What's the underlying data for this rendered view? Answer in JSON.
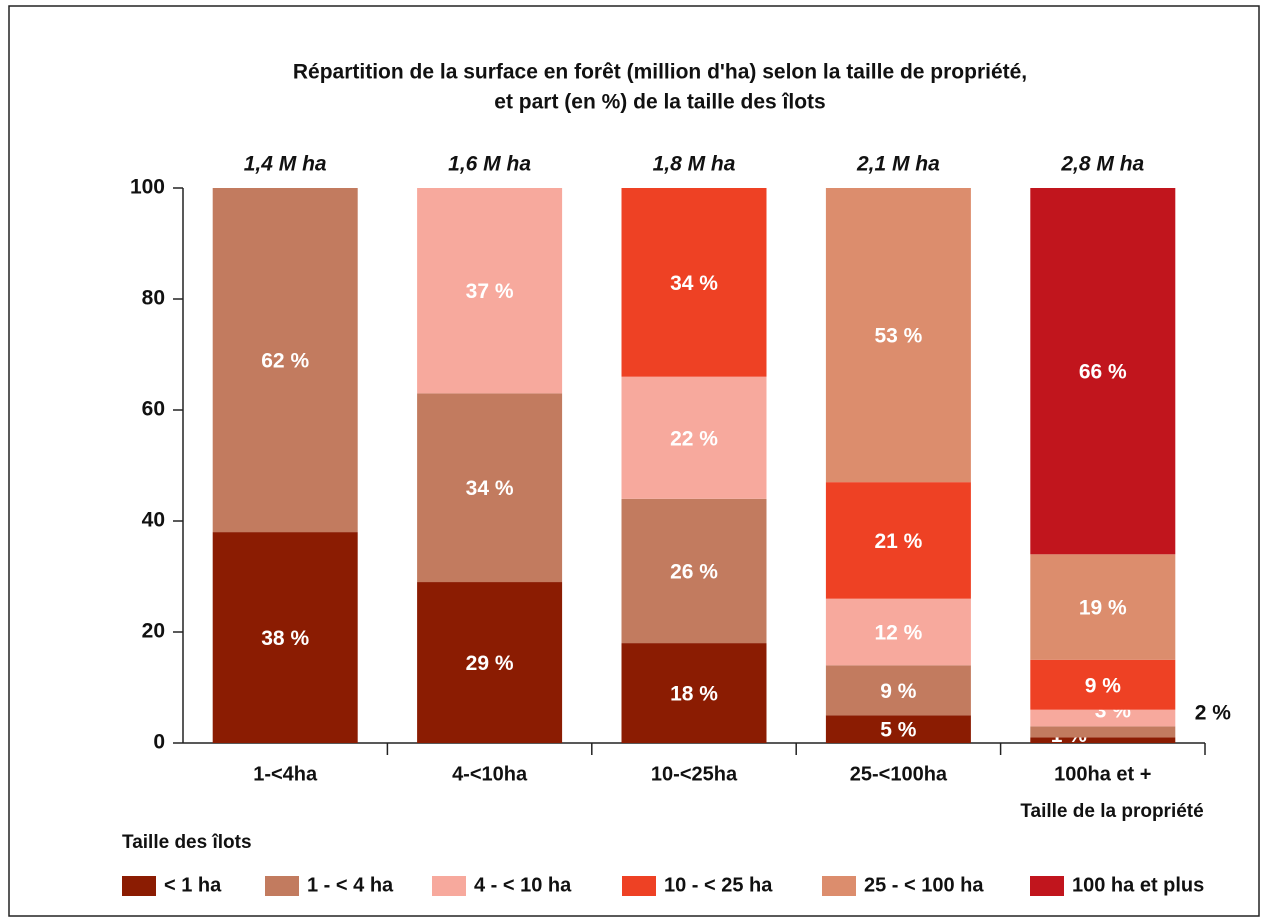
{
  "chart_data": {
    "type": "stacked_bar",
    "title": "Répartition de la surface en forêt (million d'ha) selon la taille de propriété,",
    "subtitle": "et part (en %) de la taille des îlots",
    "x_label": "Taille de la propriété",
    "legend_title": "Taille des îlots",
    "categories": [
      "1-<4ha",
      "4-<10ha",
      "10-<25ha",
      "25-<100ha",
      "100ha et +"
    ],
    "annotations": [
      "1,4 M ha",
      "1,6 M ha",
      "1,8 M ha",
      "2,1 M ha",
      "2,8 M ha"
    ],
    "ylim": [
      0,
      100
    ],
    "yticks": [
      0,
      20,
      40,
      60,
      80,
      100
    ],
    "series": [
      {
        "name": "< 1 ha",
        "color": "#8b1c02",
        "values": [
          38,
          29,
          18,
          5,
          1
        ],
        "value_labels": [
          "38 %",
          "29 %",
          "18 %",
          "5 %",
          "1 %"
        ]
      },
      {
        "name": "1 - < 4 ha",
        "color": "#c27b5f",
        "values": [
          62,
          34,
          26,
          9,
          2
        ],
        "value_labels": [
          "62 %",
          "34 %",
          "26 %",
          "9 %",
          "2 %"
        ]
      },
      {
        "name": "4 - < 10 ha",
        "color": "#f7a99d",
        "values": [
          null,
          37,
          22,
          12,
          3
        ],
        "value_labels": [
          null,
          "37 %",
          "22 %",
          "12 %",
          "3 %"
        ]
      },
      {
        "name": "10 - < 25 ha",
        "color": "#ee4124",
        "values": [
          null,
          null,
          34,
          21,
          9
        ],
        "value_labels": [
          null,
          null,
          "34 %",
          "21 %",
          "9 %"
        ]
      },
      {
        "name": "25 - < 100 ha",
        "color": "#dc8d6d",
        "values": [
          null,
          null,
          null,
          53,
          19
        ],
        "value_labels": [
          null,
          null,
          null,
          "53 %",
          "19 %"
        ]
      },
      {
        "name": "100 ha et plus",
        "color": "#c1151d",
        "values": [
          null,
          null,
          null,
          null,
          66
        ],
        "value_labels": [
          null,
          null,
          null,
          null,
          "66 %"
        ]
      }
    ]
  }
}
